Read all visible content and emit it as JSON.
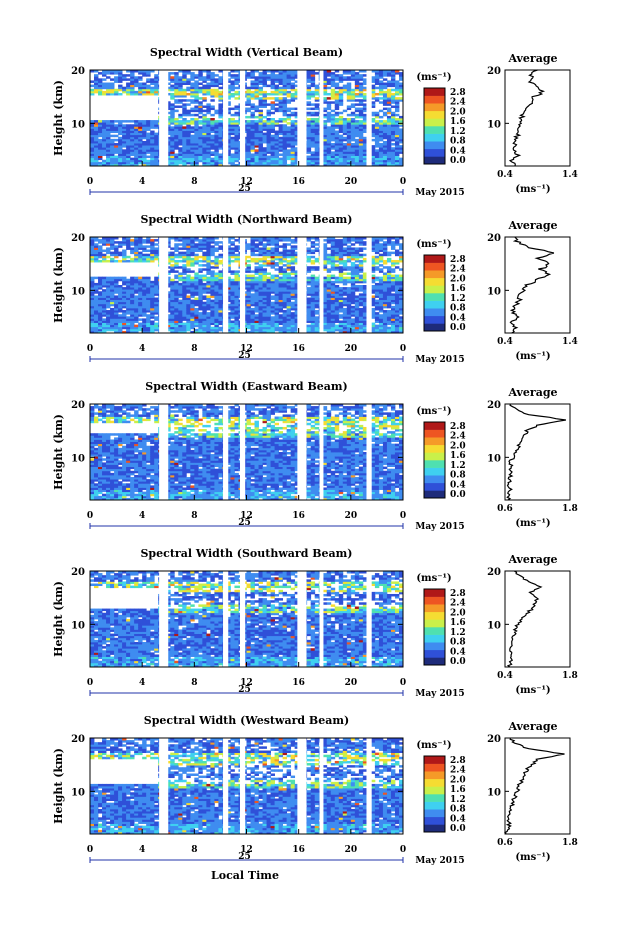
{
  "figure": {
    "xlabel_bottom": "Local Time",
    "date_label": "May 2015",
    "day_label": "25",
    "height_label": "Height (km)",
    "colorbar_unit": "(ms⁻¹)",
    "average_title": "Average",
    "average_unit": "(ms⁻¹)",
    "colormap": [
      "#1e2b7a",
      "#2f50d8",
      "#3f8cf0",
      "#3fd0f0",
      "#4fe0b0",
      "#c9f04a",
      "#f5dc32",
      "#f59a28",
      "#ee5522",
      "#b01818"
    ]
  },
  "chart_data": [
    {
      "type": "heatmap",
      "title": "Spectral Width (Vertical Beam)",
      "xlabel": "",
      "ylabel": "Height (km)",
      "xlim": [
        0,
        24
      ],
      "ylim": [
        2,
        20
      ],
      "x_ticks": [
        "0",
        "4",
        "8",
        "12",
        "16",
        "20",
        "0"
      ],
      "y_ticks": [
        "10",
        "20"
      ],
      "colorbar": {
        "range": [
          0.0,
          2.8
        ],
        "ticks": [
          "2.8",
          "2.4",
          "2.0",
          "1.6",
          "1.2",
          "0.8",
          "0.4",
          "0.0"
        ]
      },
      "gaps_hours": [
        [
          5.3,
          6.0
        ],
        [
          10.2,
          10.6
        ],
        [
          11.5,
          11.9
        ],
        [
          15.9,
          16.6
        ],
        [
          17.6,
          17.9
        ],
        [
          21.2,
          21.6
        ]
      ],
      "clear_band_km": [
        10.5,
        15.5
      ],
      "profile": {
        "xlim": [
          0.4,
          1.4
        ],
        "x_ticks": [
          "0.4",
          "1.4"
        ],
        "y_ticks": [
          "10",
          "20"
        ],
        "height_km": [
          2,
          3,
          4,
          5,
          6,
          7,
          8,
          9,
          10,
          11,
          12,
          13,
          14,
          15,
          16,
          17,
          18,
          19,
          20
        ],
        "value": [
          0.55,
          0.5,
          0.6,
          0.52,
          0.56,
          0.55,
          0.6,
          0.58,
          0.62,
          0.65,
          0.7,
          0.75,
          0.8,
          0.85,
          1.0,
          0.85,
          0.78,
          0.8,
          0.9
        ]
      }
    },
    {
      "type": "heatmap",
      "title": "Spectral Width (Northward Beam)",
      "xlabel": "",
      "ylabel": "Height (km)",
      "xlim": [
        0,
        24
      ],
      "ylim": [
        2,
        20
      ],
      "x_ticks": [
        "0",
        "4",
        "8",
        "12",
        "16",
        "20",
        "0"
      ],
      "y_ticks": [
        "10",
        "20"
      ],
      "colorbar": {
        "range": [
          0.0,
          2.8
        ],
        "ticks": [
          "2.8",
          "2.4",
          "2.0",
          "1.6",
          "1.2",
          "0.8",
          "0.4",
          "0.0"
        ]
      },
      "gaps_hours": [
        [
          5.3,
          6.0
        ],
        [
          10.2,
          10.6
        ],
        [
          11.5,
          11.9
        ],
        [
          15.9,
          16.6
        ],
        [
          17.6,
          17.9
        ],
        [
          21.2,
          21.6
        ]
      ],
      "clear_band_km": [
        12.5,
        15.5
      ],
      "profile": {
        "xlim": [
          0.4,
          1.4
        ],
        "x_ticks": [
          "0.4",
          "1.4"
        ],
        "y_ticks": [
          "10",
          "20"
        ],
        "height_km": [
          2,
          3,
          4,
          5,
          6,
          7,
          8,
          9,
          10,
          11,
          12,
          13,
          14,
          15,
          16,
          17,
          18,
          19,
          20
        ],
        "value": [
          0.5,
          0.55,
          0.5,
          0.6,
          0.52,
          0.55,
          0.62,
          0.6,
          0.68,
          0.75,
          0.9,
          1.05,
          0.95,
          1.1,
          0.9,
          1.15,
          0.8,
          0.6,
          0.55
        ]
      }
    },
    {
      "type": "heatmap",
      "title": "Spectral Width (Eastward Beam)",
      "xlabel": "",
      "ylabel": "Height (km)",
      "xlim": [
        0,
        24
      ],
      "ylim": [
        2,
        20
      ],
      "x_ticks": [
        "0",
        "4",
        "8",
        "12",
        "16",
        "20",
        "0"
      ],
      "y_ticks": [
        "10",
        "20"
      ],
      "colorbar": {
        "range": [
          0.0,
          2.8
        ],
        "ticks": [
          "2.8",
          "2.4",
          "2.0",
          "1.6",
          "1.2",
          "0.8",
          "0.4",
          "0.0"
        ]
      },
      "gaps_hours": [
        [
          5.3,
          6.0
        ],
        [
          10.2,
          10.6
        ],
        [
          11.5,
          11.9
        ],
        [
          15.9,
          16.6
        ],
        [
          17.6,
          17.9
        ],
        [
          21.2,
          21.6
        ]
      ],
      "clear_band_km": [
        14.5,
        16.5
      ],
      "profile": {
        "xlim": [
          0.6,
          1.8
        ],
        "x_ticks": [
          "0.6",
          "1.8"
        ],
        "y_ticks": [
          "10",
          "20"
        ],
        "height_km": [
          2,
          3,
          4,
          5,
          6,
          7,
          8,
          9,
          10,
          11,
          12,
          13,
          14,
          15,
          16,
          17,
          18,
          19,
          20
        ],
        "value": [
          0.65,
          0.68,
          0.7,
          0.66,
          0.7,
          0.68,
          0.72,
          0.7,
          0.75,
          0.78,
          0.85,
          0.9,
          0.95,
          1.0,
          1.2,
          1.75,
          1.05,
          0.8,
          0.7
        ]
      }
    },
    {
      "type": "heatmap",
      "title": "Spectral Width (Southward Beam)",
      "xlabel": "",
      "ylabel": "Height (km)",
      "xlim": [
        0,
        24
      ],
      "ylim": [
        2,
        20
      ],
      "x_ticks": [
        "0",
        "4",
        "8",
        "12",
        "16",
        "20",
        "0"
      ],
      "y_ticks": [
        "10",
        "20"
      ],
      "colorbar": {
        "range": [
          0.0,
          2.8
        ],
        "ticks": [
          "2.8",
          "2.4",
          "2.0",
          "1.6",
          "1.2",
          "0.8",
          "0.4",
          "0.0"
        ]
      },
      "gaps_hours": [
        [
          5.3,
          6.0
        ],
        [
          10.2,
          10.6
        ],
        [
          11.5,
          11.9
        ],
        [
          15.9,
          16.6
        ],
        [
          17.6,
          17.9
        ],
        [
          21.2,
          21.6
        ]
      ],
      "clear_band_km": [
        13.0,
        17.0
      ],
      "profile": {
        "xlim": [
          0.4,
          1.8
        ],
        "x_ticks": [
          "0.4",
          "1.8"
        ],
        "y_ticks": [
          "10",
          "20"
        ],
        "height_km": [
          2,
          3,
          4,
          5,
          6,
          7,
          8,
          9,
          10,
          11,
          12,
          13,
          14,
          15,
          16,
          17,
          18,
          19,
          20
        ],
        "value": [
          0.5,
          0.52,
          0.55,
          0.5,
          0.58,
          0.55,
          0.6,
          0.62,
          0.68,
          0.75,
          0.85,
          1.0,
          1.05,
          1.1,
          0.95,
          1.15,
          0.9,
          0.75,
          0.6
        ]
      }
    },
    {
      "type": "heatmap",
      "title": "Spectral Width (Westward Beam)",
      "xlabel": "",
      "ylabel": "Height (km)",
      "xlim": [
        0,
        24
      ],
      "ylim": [
        2,
        20
      ],
      "x_ticks": [
        "0",
        "4",
        "8",
        "12",
        "16",
        "20",
        "0"
      ],
      "y_ticks": [
        "10",
        "20"
      ],
      "colorbar": {
        "range": [
          0.0,
          2.8
        ],
        "ticks": [
          "2.8",
          "2.4",
          "2.0",
          "1.6",
          "1.2",
          "0.8",
          "0.4",
          "0.0"
        ]
      },
      "gaps_hours": [
        [
          5.3,
          6.0
        ],
        [
          10.2,
          10.6
        ],
        [
          11.5,
          11.9
        ],
        [
          15.9,
          16.6
        ],
        [
          17.6,
          17.9
        ],
        [
          21.2,
          21.6
        ]
      ],
      "clear_band_km": [
        11.5,
        16.0
      ],
      "profile": {
        "xlim": [
          0.6,
          1.8
        ],
        "x_ticks": [
          "0.6",
          "1.8"
        ],
        "y_ticks": [
          "10",
          "20"
        ],
        "height_km": [
          2,
          3,
          4,
          5,
          6,
          7,
          8,
          9,
          10,
          11,
          12,
          13,
          14,
          15,
          16,
          17,
          18,
          19,
          20
        ],
        "value": [
          0.62,
          0.65,
          0.68,
          0.66,
          0.7,
          0.72,
          0.75,
          0.78,
          0.82,
          0.85,
          0.9,
          0.95,
          1.0,
          1.1,
          1.2,
          1.7,
          1.0,
          0.8,
          0.7
        ]
      }
    }
  ]
}
